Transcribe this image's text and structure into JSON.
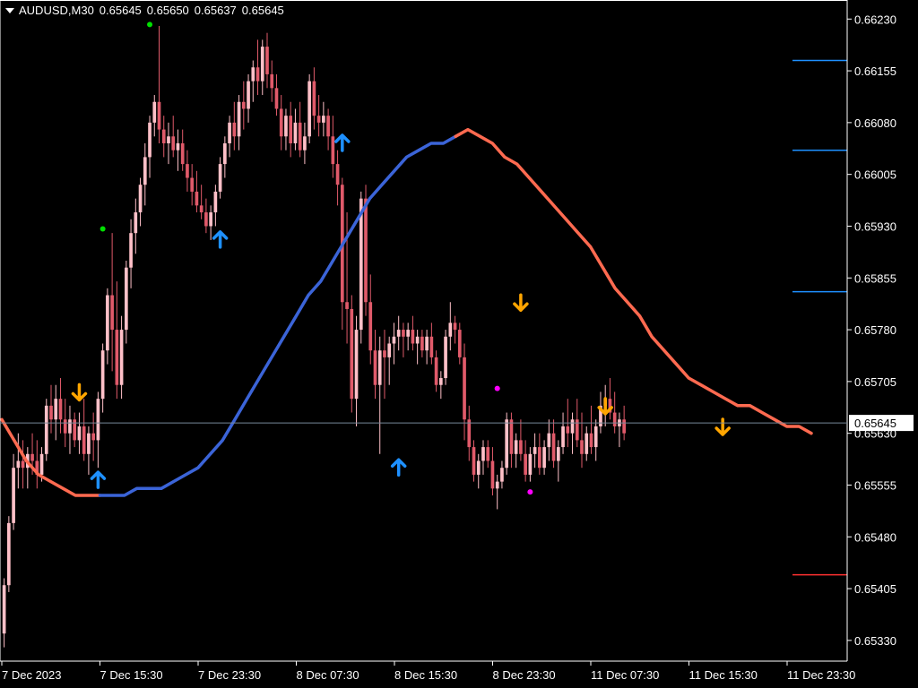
{
  "header": {
    "symbol": "AUDUSD,M30",
    "open": "0.65645",
    "high": "0.65650",
    "low": "0.65637",
    "close": "0.65645"
  },
  "colors": {
    "background": "#000000",
    "axis": "#ffffff",
    "bull_candle": "#ffc0c8",
    "bear_candle": "#e05a6a",
    "ma_up": "#3b64d8",
    "ma_down": "#ff6a50",
    "arrow_up": "#1e90ff",
    "arrow_down": "#ffa500",
    "dot_green": "#00e000",
    "dot_magenta": "#ff00ff",
    "level_blue": "#1e90ff",
    "level_red": "#ff3030",
    "price_line": "#778899"
  },
  "chart_data": {
    "type": "line",
    "symbol": "AUDUSD",
    "timeframe": "M30",
    "price_axis": {
      "ylim": [
        0.6527,
        0.6627
      ],
      "tick_labels": [
        "0.66230",
        "0.66155",
        "0.66080",
        "0.66005",
        "0.65930",
        "0.65855",
        "0.65780",
        "0.65705",
        "0.65645",
        "0.65630",
        "0.65555",
        "0.65480",
        "0.65405",
        "0.65330"
      ],
      "ticks": [
        0.6623,
        0.66155,
        0.6608,
        0.66005,
        0.6593,
        0.65855,
        0.6578,
        0.65705,
        0.6563,
        0.65555,
        0.6548,
        0.65405,
        0.6533
      ],
      "current_price": 0.65645,
      "current_price_label": "0.65645"
    },
    "time_axis": {
      "labels": [
        "7 Dec 2023",
        "7 Dec 15:30",
        "7 Dec 23:30",
        "8 Dec 07:30",
        "8 Dec 15:30",
        "8 Dec 23:30",
        "11 Dec 07:30",
        "11 Dec 15:30",
        "11 Dec 23:30"
      ],
      "label_bar_index": [
        0,
        22,
        44,
        66,
        88,
        110,
        132,
        154,
        176
      ]
    },
    "candles_ohlc": [
      [
        0.6534,
        0.6542,
        0.6532,
        0.6541
      ],
      [
        0.6541,
        0.6551,
        0.654,
        0.655
      ],
      [
        0.655,
        0.656,
        0.6549,
        0.6558
      ],
      [
        0.6558,
        0.6563,
        0.6555,
        0.6559
      ],
      [
        0.6559,
        0.6562,
        0.6555,
        0.6558
      ],
      [
        0.6558,
        0.6561,
        0.6555,
        0.656
      ],
      [
        0.656,
        0.6563,
        0.6557,
        0.6559
      ],
      [
        0.6559,
        0.6562,
        0.6555,
        0.6557
      ],
      [
        0.6557,
        0.6561,
        0.6556,
        0.656
      ],
      [
        0.656,
        0.6568,
        0.6559,
        0.6567
      ],
      [
        0.6567,
        0.657,
        0.6563,
        0.6565
      ],
      [
        0.6565,
        0.657,
        0.6562,
        0.6568
      ],
      [
        0.6568,
        0.6571,
        0.6563,
        0.6565
      ],
      [
        0.6565,
        0.6568,
        0.6561,
        0.6563
      ],
      [
        0.6563,
        0.6567,
        0.656,
        0.6565
      ],
      [
        0.6565,
        0.6566,
        0.6561,
        0.6562
      ],
      [
        0.6562,
        0.6566,
        0.656,
        0.6564
      ],
      [
        0.6564,
        0.6568,
        0.6559,
        0.656
      ],
      [
        0.656,
        0.6564,
        0.6557,
        0.6563
      ],
      [
        0.6563,
        0.6566,
        0.6559,
        0.6562
      ],
      [
        0.6562,
        0.6569,
        0.6558,
        0.6568
      ],
      [
        0.6568,
        0.6576,
        0.6566,
        0.6575
      ],
      [
        0.6575,
        0.6584,
        0.6573,
        0.6583
      ],
      [
        0.6583,
        0.6592,
        0.6572,
        0.6578
      ],
      [
        0.6578,
        0.6585,
        0.6568,
        0.657
      ],
      [
        0.657,
        0.658,
        0.6568,
        0.6578
      ],
      [
        0.6578,
        0.6588,
        0.6576,
        0.6587
      ],
      [
        0.6587,
        0.6594,
        0.6584,
        0.6592
      ],
      [
        0.6592,
        0.6597,
        0.6589,
        0.6595
      ],
      [
        0.6595,
        0.66,
        0.6593,
        0.6599
      ],
      [
        0.6599,
        0.6605,
        0.6596,
        0.6603
      ],
      [
        0.6603,
        0.6609,
        0.66,
        0.6608
      ],
      [
        0.6608,
        0.6612,
        0.6606,
        0.6611
      ],
      [
        0.6611,
        0.6622,
        0.6605,
        0.6607
      ],
      [
        0.6607,
        0.6609,
        0.6603,
        0.6605
      ],
      [
        0.6605,
        0.6608,
        0.6602,
        0.6606
      ],
      [
        0.6606,
        0.6609,
        0.6603,
        0.6604
      ],
      [
        0.6604,
        0.6607,
        0.6601,
        0.6605
      ],
      [
        0.6605,
        0.6607,
        0.6601,
        0.6602
      ],
      [
        0.6602,
        0.6604,
        0.6598,
        0.66
      ],
      [
        0.66,
        0.6602,
        0.6596,
        0.6598
      ],
      [
        0.6598,
        0.6601,
        0.6595,
        0.6596
      ],
      [
        0.6596,
        0.6599,
        0.6594,
        0.6595
      ],
      [
        0.6595,
        0.6597,
        0.6592,
        0.6593
      ],
      [
        0.6593,
        0.6596,
        0.6591,
        0.6595
      ],
      [
        0.6595,
        0.6599,
        0.6593,
        0.6598
      ],
      [
        0.6598,
        0.6603,
        0.6597,
        0.6602
      ],
      [
        0.6602,
        0.6606,
        0.66,
        0.6605
      ],
      [
        0.6605,
        0.6609,
        0.6603,
        0.6608
      ],
      [
        0.6608,
        0.6611,
        0.6604,
        0.6606
      ],
      [
        0.6606,
        0.6612,
        0.6604,
        0.6611
      ],
      [
        0.6611,
        0.6614,
        0.6607,
        0.661
      ],
      [
        0.661,
        0.6615,
        0.6608,
        0.6614
      ],
      [
        0.6614,
        0.6617,
        0.6611,
        0.6616
      ],
      [
        0.6616,
        0.662,
        0.6612,
        0.6614
      ],
      [
        0.6614,
        0.662,
        0.6612,
        0.6619
      ],
      [
        0.6619,
        0.6621,
        0.6613,
        0.6615
      ],
      [
        0.6615,
        0.6617,
        0.6611,
        0.6613
      ],
      [
        0.6613,
        0.6615,
        0.6609,
        0.661
      ],
      [
        0.661,
        0.6612,
        0.6604,
        0.6606
      ],
      [
        0.6606,
        0.661,
        0.6604,
        0.6609
      ],
      [
        0.6609,
        0.6611,
        0.6603,
        0.6605
      ],
      [
        0.6605,
        0.661,
        0.6604,
        0.6608
      ],
      [
        0.6608,
        0.6611,
        0.6603,
        0.6604
      ],
      [
        0.6604,
        0.6608,
        0.6602,
        0.6606
      ],
      [
        0.6606,
        0.6615,
        0.6605,
        0.6614
      ],
      [
        0.6614,
        0.6616,
        0.6607,
        0.6609
      ],
      [
        0.6609,
        0.6612,
        0.6606,
        0.6608
      ],
      [
        0.6608,
        0.6611,
        0.6606,
        0.6609
      ],
      [
        0.6609,
        0.661,
        0.6604,
        0.6606
      ],
      [
        0.6606,
        0.6609,
        0.66,
        0.6602
      ],
      [
        0.6602,
        0.6604,
        0.6596,
        0.6599
      ],
      [
        0.6599,
        0.66,
        0.6578,
        0.6582
      ],
      [
        0.6582,
        0.6595,
        0.6576,
        0.6581
      ],
      [
        0.6581,
        0.6583,
        0.6566,
        0.6568
      ],
      [
        0.6568,
        0.658,
        0.6564,
        0.6578
      ],
      [
        0.6578,
        0.6598,
        0.6576,
        0.6597
      ],
      [
        0.6597,
        0.6599,
        0.658,
        0.6582
      ],
      [
        0.6582,
        0.6586,
        0.6573,
        0.6575
      ],
      [
        0.6575,
        0.6578,
        0.6568,
        0.657
      ],
      [
        0.657,
        0.6577,
        0.656,
        0.6575
      ],
      [
        0.6575,
        0.6578,
        0.6568,
        0.6574
      ],
      [
        0.6574,
        0.6577,
        0.657,
        0.6576
      ],
      [
        0.6576,
        0.6579,
        0.6573,
        0.6577
      ],
      [
        0.6577,
        0.658,
        0.6575,
        0.6578
      ],
      [
        0.6578,
        0.6579,
        0.6574,
        0.6577
      ],
      [
        0.6577,
        0.6579,
        0.6575,
        0.6578
      ],
      [
        0.6578,
        0.658,
        0.6575,
        0.6576
      ],
      [
        0.6576,
        0.6578,
        0.6573,
        0.6577
      ],
      [
        0.6577,
        0.6578,
        0.6574,
        0.6575
      ],
      [
        0.6575,
        0.6578,
        0.6573,
        0.6577
      ],
      [
        0.6577,
        0.6579,
        0.6573,
        0.6574
      ],
      [
        0.6574,
        0.6575,
        0.6569,
        0.657
      ],
      [
        0.657,
        0.6572,
        0.6568,
        0.6571
      ],
      [
        0.6571,
        0.6578,
        0.657,
        0.6577
      ],
      [
        0.6577,
        0.6582,
        0.6575,
        0.6579
      ],
      [
        0.6579,
        0.658,
        0.6576,
        0.6578
      ],
      [
        0.6578,
        0.6579,
        0.6573,
        0.6574
      ],
      [
        0.6574,
        0.6576,
        0.6562,
        0.6565
      ],
      [
        0.6565,
        0.6567,
        0.6559,
        0.6561
      ],
      [
        0.6561,
        0.6562,
        0.6556,
        0.6557
      ],
      [
        0.6557,
        0.656,
        0.6555,
        0.6559
      ],
      [
        0.6559,
        0.6562,
        0.6557,
        0.6561
      ],
      [
        0.6561,
        0.6562,
        0.6558,
        0.6559
      ],
      [
        0.6559,
        0.6561,
        0.6554,
        0.6555
      ],
      [
        0.6555,
        0.6557,
        0.6552,
        0.6556
      ],
      [
        0.6556,
        0.6559,
        0.6555,
        0.6558
      ],
      [
        0.6558,
        0.6566,
        0.6557,
        0.6565
      ],
      [
        0.6565,
        0.6566,
        0.6558,
        0.656
      ],
      [
        0.656,
        0.6563,
        0.6558,
        0.6562
      ],
      [
        0.6562,
        0.6565,
        0.6559,
        0.656
      ],
      [
        0.656,
        0.6562,
        0.6556,
        0.6557
      ],
      [
        0.6557,
        0.6561,
        0.6556,
        0.656
      ],
      [
        0.656,
        0.6563,
        0.6558,
        0.6561
      ],
      [
        0.6561,
        0.6563,
        0.6557,
        0.6558
      ],
      [
        0.6558,
        0.6562,
        0.6557,
        0.6561
      ],
      [
        0.6561,
        0.6565,
        0.6559,
        0.6563
      ],
      [
        0.6563,
        0.6565,
        0.6558,
        0.6559
      ],
      [
        0.6559,
        0.6562,
        0.6556,
        0.6561
      ],
      [
        0.6561,
        0.6566,
        0.656,
        0.6564
      ],
      [
        0.6564,
        0.6568,
        0.6561,
        0.6563
      ],
      [
        0.6563,
        0.6566,
        0.656,
        0.6565
      ],
      [
        0.6565,
        0.6568,
        0.6561,
        0.6562
      ],
      [
        0.6562,
        0.6566,
        0.6558,
        0.656
      ],
      [
        0.656,
        0.6564,
        0.6559,
        0.6563
      ],
      [
        0.6563,
        0.6567,
        0.656,
        0.6561
      ],
      [
        0.6561,
        0.6565,
        0.6559,
        0.6564
      ],
      [
        0.6564,
        0.6569,
        0.6563,
        0.6567
      ],
      [
        0.6567,
        0.657,
        0.6564,
        0.6568
      ],
      [
        0.6568,
        0.6571,
        0.6565,
        0.6566
      ],
      [
        0.6566,
        0.6569,
        0.6563,
        0.6564
      ],
      [
        0.6564,
        0.6566,
        0.6561,
        0.6565
      ],
      [
        0.6565,
        0.6567,
        0.6562,
        0.6563
      ]
    ],
    "moving_average": {
      "values": [
        0.6565,
        0.6562,
        0.6559,
        0.6557,
        0.6556,
        0.6555,
        0.6554,
        0.6554,
        0.6554,
        0.6554,
        0.6554,
        0.6555,
        0.6555,
        0.6555,
        0.6556,
        0.6557,
        0.6558,
        0.656,
        0.6562,
        0.6565,
        0.6568,
        0.6571,
        0.6574,
        0.6577,
        0.658,
        0.6583,
        0.6585,
        0.6588,
        0.6591,
        0.6594,
        0.6597,
        0.6599,
        0.6601,
        0.6603,
        0.6604,
        0.6605,
        0.6605,
        0.6606,
        0.6607,
        0.6606,
        0.6605,
        0.6603,
        0.6602,
        0.66,
        0.6598,
        0.6596,
        0.6594,
        0.6592,
        0.659,
        0.6587,
        0.6584,
        0.6582,
        0.658,
        0.6577,
        0.6575,
        0.6573,
        0.6571,
        0.657,
        0.6569,
        0.6568,
        0.6567,
        0.6567,
        0.6566,
        0.6565,
        0.6564,
        0.6564,
        0.6563
      ],
      "colors_by_segment": [
        {
          "until_index": 8,
          "color": "down"
        },
        {
          "until_index": 37,
          "color": "up"
        },
        {
          "until_index": 66,
          "color": "down"
        }
      ]
    },
    "signals": [
      {
        "type": "arrow_up",
        "bar": 20,
        "price": 0.65562
      },
      {
        "type": "arrow_down",
        "bar": 16,
        "price": 0.6569
      },
      {
        "type": "arrow_up",
        "bar": 46,
        "price": 0.6591
      },
      {
        "type": "arrow_up",
        "bar": 72,
        "price": 0.6605
      },
      {
        "type": "arrow_up",
        "bar": 84,
        "price": 0.6558
      },
      {
        "type": "arrow_down",
        "bar": 110,
        "price": 0.6582
      },
      {
        "type": "arrow_down",
        "bar": 128,
        "price": 0.6567
      },
      {
        "type": "arrow_down",
        "bar": 153,
        "price": 0.6564
      },
      {
        "type": "dot_green",
        "bar": 31,
        "price": 0.66222
      },
      {
        "type": "dot_green",
        "bar": 21,
        "price": 0.65926
      },
      {
        "type": "dot_magenta",
        "bar": 105,
        "price": 0.65695
      },
      {
        "type": "dot_magenta",
        "bar": 112,
        "price": 0.65545
      }
    ],
    "horizontal_levels": [
      {
        "price": 0.6617,
        "color": "blue"
      },
      {
        "price": 0.6604,
        "color": "blue"
      },
      {
        "price": 0.65835,
        "color": "blue"
      },
      {
        "price": 0.65425,
        "color": "red"
      }
    ],
    "grid": false,
    "legend": "none"
  }
}
